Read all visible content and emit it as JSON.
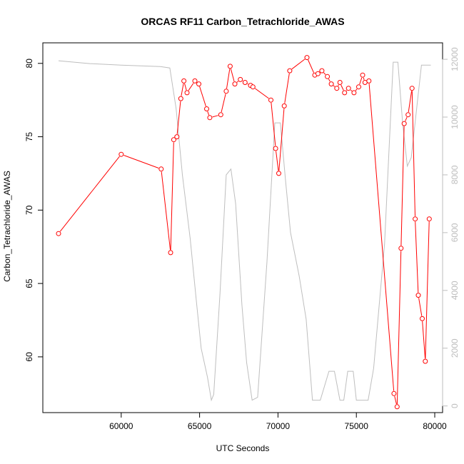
{
  "chart_data": {
    "type": "line",
    "title": "ORCAS RF11 Carbon_Tetrachloride_AWAS",
    "xlabel": "UTC Seconds",
    "ylabel": "Carbon_Tetrachloride_AWAS",
    "xlim": [
      55000,
      80500
    ],
    "ylim": [
      56.2,
      81.4
    ],
    "y2lim": [
      -230,
      12570
    ],
    "x_ticks": [
      60000,
      65000,
      70000,
      75000,
      80000
    ],
    "y_ticks": [
      60,
      65,
      70,
      75,
      80
    ],
    "y2_ticks": [
      0,
      2000,
      4000,
      6000,
      8000,
      10000,
      12000
    ],
    "x_tick_labels": [
      "60000",
      "65000",
      "70000",
      "75000",
      "80000"
    ],
    "y_tick_labels": [
      "60",
      "65",
      "70",
      "75",
      "80"
    ],
    "y2_tick_labels": [
      "0",
      "2000",
      "4000",
      "6000",
      "8000",
      "10000",
      "12000"
    ],
    "series": [
      {
        "color": "#ff0000",
        "marker": "open-circle",
        "points": [
          [
            56000,
            68.4
          ],
          [
            60000,
            73.8
          ],
          [
            62550,
            72.8
          ],
          [
            63150,
            67.1
          ],
          [
            63350,
            74.8
          ],
          [
            63550,
            75.0
          ],
          [
            63800,
            77.6
          ],
          [
            64000,
            78.8
          ],
          [
            64200,
            78.0
          ],
          [
            64700,
            78.8
          ],
          [
            64950,
            78.6
          ],
          [
            65450,
            76.9
          ],
          [
            65650,
            76.3
          ],
          [
            66350,
            76.5
          ],
          [
            66700,
            78.1
          ],
          [
            66950,
            79.8
          ],
          [
            67250,
            78.6
          ],
          [
            67600,
            78.9
          ],
          [
            67900,
            78.7
          ],
          [
            68250,
            78.5
          ],
          [
            68400,
            78.4
          ],
          [
            69550,
            77.5
          ],
          [
            69850,
            74.2
          ],
          [
            70050,
            72.5
          ],
          [
            70400,
            77.1
          ],
          [
            70750,
            79.5
          ],
          [
            71850,
            80.4
          ],
          [
            72350,
            79.2
          ],
          [
            72550,
            79.3
          ],
          [
            72800,
            79.5
          ],
          [
            73150,
            79.1
          ],
          [
            73400,
            78.6
          ],
          [
            73750,
            78.3
          ],
          [
            73950,
            78.7
          ],
          [
            74250,
            78.0
          ],
          [
            74500,
            78.3
          ],
          [
            74850,
            78.0
          ],
          [
            75150,
            78.4
          ],
          [
            75400,
            79.2
          ],
          [
            75550,
            78.7
          ],
          [
            75800,
            78.8
          ],
          [
            77400,
            57.5
          ],
          [
            77600,
            56.6
          ],
          [
            77850,
            67.4
          ],
          [
            78050,
            75.9
          ],
          [
            78300,
            76.5
          ],
          [
            78550,
            78.3
          ],
          [
            78750,
            69.4
          ],
          [
            78950,
            64.2
          ],
          [
            79200,
            62.6
          ],
          [
            79400,
            59.7
          ],
          [
            79650,
            69.4
          ]
        ]
      },
      {
        "color": "#bebebe",
        "axis": "right",
        "points": [
          [
            56000,
            11950
          ],
          [
            58000,
            11850
          ],
          [
            60000,
            11800
          ],
          [
            62500,
            11750
          ],
          [
            63100,
            11700
          ],
          [
            63500,
            10300
          ],
          [
            63900,
            8000
          ],
          [
            64400,
            5800
          ],
          [
            64800,
            3600
          ],
          [
            65100,
            2000
          ],
          [
            65500,
            1000
          ],
          [
            65750,
            200
          ],
          [
            65900,
            400
          ],
          [
            66300,
            3900
          ],
          [
            66700,
            8000
          ],
          [
            67000,
            8200
          ],
          [
            67300,
            7000
          ],
          [
            67700,
            3500
          ],
          [
            68000,
            1500
          ],
          [
            68350,
            200
          ],
          [
            68700,
            300
          ],
          [
            69300,
            5000
          ],
          [
            69800,
            9800
          ],
          [
            70150,
            9800
          ],
          [
            70500,
            7700
          ],
          [
            70800,
            6000
          ],
          [
            71350,
            4500
          ],
          [
            71800,
            3000
          ],
          [
            72200,
            200
          ],
          [
            72700,
            200
          ],
          [
            73250,
            1200
          ],
          [
            73600,
            1200
          ],
          [
            73950,
            200
          ],
          [
            74200,
            200
          ],
          [
            74450,
            1200
          ],
          [
            74800,
            1200
          ],
          [
            75000,
            200
          ],
          [
            75750,
            200
          ],
          [
            76100,
            1300
          ],
          [
            76800,
            5600
          ],
          [
            77350,
            11900
          ],
          [
            77650,
            11900
          ],
          [
            77950,
            9800
          ],
          [
            78250,
            8300
          ],
          [
            78500,
            8600
          ],
          [
            79150,
            11800
          ],
          [
            79450,
            11800
          ],
          [
            79750,
            11800
          ]
        ]
      }
    ]
  }
}
